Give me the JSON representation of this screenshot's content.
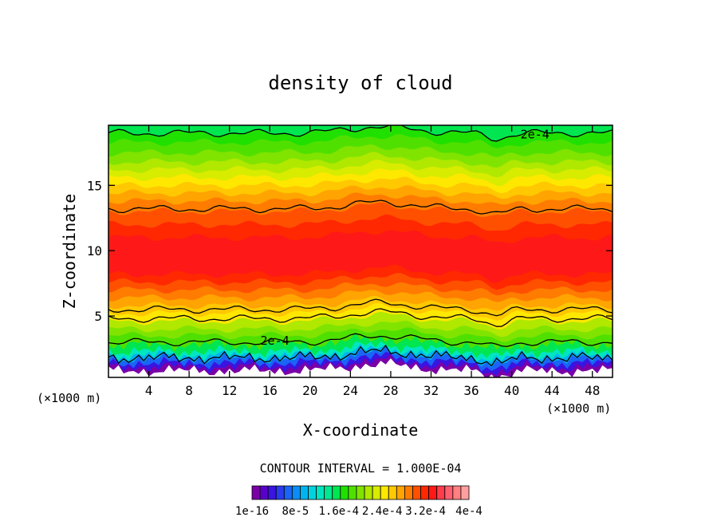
{
  "chart_data": {
    "type": "contour",
    "title": "density of cloud",
    "xlabel": "X-coordinate",
    "ylabel": "Z-coordinate",
    "x_unit": "(×1000 m)",
    "xlim": [
      0,
      50
    ],
    "ylim": [
      0.3,
      19.6
    ],
    "x_ticks": [
      4,
      8,
      12,
      16,
      20,
      24,
      28,
      32,
      36,
      40,
      44,
      48
    ],
    "y_ticks": [
      5,
      10,
      15
    ],
    "contour_interval_text": "CONTOUR INTERVAL = 1.000E-04",
    "contour_labels": [
      {
        "text": "2e-4",
        "x": 42.3,
        "z": 18.9
      },
      {
        "text": "2e-4",
        "x": 16.5,
        "z": 3.1
      }
    ],
    "colorbar": {
      "colors": [
        "#7a00a6",
        "#5a00c8",
        "#3a14e0",
        "#2a3cf0",
        "#1a64f6",
        "#0a8cf6",
        "#00b4f0",
        "#00d2e0",
        "#00e6c0",
        "#00e890",
        "#00e650",
        "#20e000",
        "#50e000",
        "#80e400",
        "#b0e800",
        "#d8ec00",
        "#ffe800",
        "#ffc800",
        "#ffa400",
        "#ff7c00",
        "#ff5000",
        "#ff2800",
        "#ff1818",
        "#ff3c4c",
        "#ff6070",
        "#ff8080",
        "#ffa0a0"
      ],
      "tick_labels": [
        "1e-16",
        "8e-5",
        "1.6e-4",
        "2.4e-4",
        "3.2e-4",
        "4e-4"
      ],
      "min": 1e-16,
      "max": 0.0004
    },
    "layers": [
      {
        "z": 0.3,
        "color": "#ffffff"
      },
      {
        "z": 0.8,
        "color": "#7a00a6"
      },
      {
        "z": 1.1,
        "color": "#3a14e0"
      },
      {
        "z": 1.4,
        "color": "#1a64f6"
      },
      {
        "z": 1.7,
        "color": "#00b4f0"
      },
      {
        "z": 2.0,
        "color": "#00e6c0"
      },
      {
        "z": 2.3,
        "color": "#00e650"
      },
      {
        "z": 2.8,
        "color": "#50e000"
      },
      {
        "z": 3.5,
        "color": "#80e400"
      },
      {
        "z": 4.0,
        "color": "#b0e800"
      },
      {
        "z": 4.6,
        "color": "#ffe800"
      },
      {
        "z": 5.2,
        "color": "#ffc800"
      },
      {
        "z": 5.8,
        "color": "#ffa400"
      },
      {
        "z": 6.4,
        "color": "#ff7c00"
      },
      {
        "z": 7.0,
        "color": "#ff5000"
      },
      {
        "z": 7.6,
        "color": "#ff2800"
      },
      {
        "z": 8.2,
        "color": "#ff1818"
      },
      {
        "z": 11.0,
        "color": "#ff2800"
      },
      {
        "z": 12.0,
        "color": "#ff5000"
      },
      {
        "z": 13.0,
        "color": "#ff7c00"
      },
      {
        "z": 13.8,
        "color": "#ffa400"
      },
      {
        "z": 14.4,
        "color": "#ffc800"
      },
      {
        "z": 15.0,
        "color": "#ffe800"
      },
      {
        "z": 15.6,
        "color": "#d8ec00"
      },
      {
        "z": 16.2,
        "color": "#b0e800"
      },
      {
        "z": 16.8,
        "color": "#80e400"
      },
      {
        "z": 17.5,
        "color": "#50e000"
      },
      {
        "z": 18.3,
        "color": "#20e000"
      },
      {
        "z": 19.0,
        "color": "#00e650"
      }
    ],
    "contour_lines": [
      {
        "name": "",
        "z": 19.0
      },
      {
        "name": "",
        "z": 13.2
      },
      {
        "name": "",
        "z": 5.5
      },
      {
        "name": "",
        "z": 4.8
      },
      {
        "name": "",
        "z": 3.0
      },
      {
        "name": "",
        "z": 1.8
      }
    ]
  }
}
